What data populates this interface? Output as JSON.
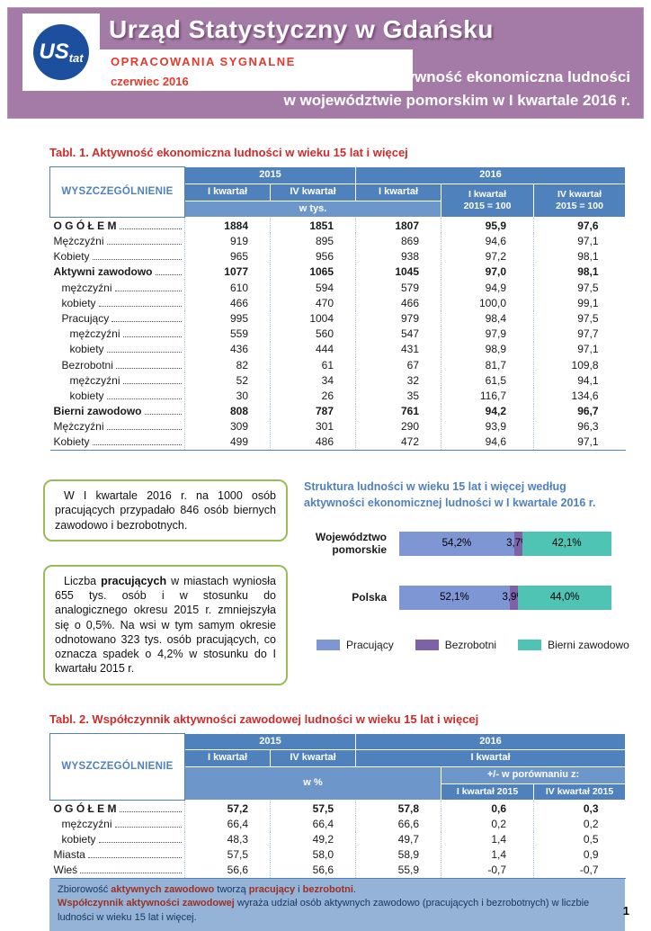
{
  "colors": {
    "banner": "#a47ba6",
    "red": "#e8382c",
    "titlered": "#cf2b2b",
    "tblue": "#4f81bd",
    "tblue-light": "#6d97cb",
    "green": "#9bbb59",
    "notebg": "#95b3d7",
    "navy": "#17365d",
    "notered": "#9e2f22",
    "logoblue": "#1d4f9f"
  },
  "header": {
    "logo_us": "US",
    "logo_tat": "tat",
    "office_title": "Urząd Statystyczny w Gdańsku",
    "series": "OPRACOWANIA SYGNALNE",
    "date": "czerwiec 2016",
    "publication_title_line1": "Aktywność ekonomiczna ludności",
    "publication_title_line2": "w województwie pomorskim w I kwartale 2016 r."
  },
  "table1": {
    "title": "Tabl. 1. Aktywność ekonomiczna ludności w wieku 15 lat i więcej",
    "header": {
      "stub": "WYSZCZEGÓLNIENIE",
      "y2015": "2015",
      "y2016": "2016",
      "q1_2015": "I kwartał",
      "q4_2015": "IV kwartał",
      "q1_2016": "I kwartał",
      "unit": "w tys.",
      "idx_q1_l1": "I kwartał",
      "idx_q1_l2": "2015 = 100",
      "idx_q4_l1": "IV kwartał",
      "idx_q4_l2": "2015 = 100"
    },
    "rows": [
      {
        "label": "O G Ó Ł E M",
        "indent": 0,
        "bold": true,
        "values": [
          "1884",
          "1851",
          "1807",
          "95,9",
          "97,6"
        ]
      },
      {
        "label": "Mężczyźni",
        "indent": 0,
        "bold": false,
        "values": [
          "919",
          "895",
          "869",
          "94,6",
          "97,1"
        ]
      },
      {
        "label": "Kobiety",
        "indent": 0,
        "bold": false,
        "values": [
          "965",
          "956",
          "938",
          "97,2",
          "98,1"
        ]
      },
      {
        "label": "Aktywni zawodowo",
        "indent": 0,
        "bold": true,
        "values": [
          "1077",
          "1065",
          "1045",
          "97,0",
          "98,1"
        ]
      },
      {
        "label": "mężczyźni",
        "indent": 1,
        "bold": false,
        "values": [
          "610",
          "594",
          "579",
          "94,9",
          "97,5"
        ]
      },
      {
        "label": "kobiety",
        "indent": 1,
        "bold": false,
        "values": [
          "466",
          "470",
          "466",
          "100,0",
          "99,1"
        ]
      },
      {
        "label": "Pracujący",
        "indent": 1,
        "bold": false,
        "values": [
          "995",
          "1004",
          "979",
          "98,4",
          "97,5"
        ]
      },
      {
        "label": "mężczyźni",
        "indent": 2,
        "bold": false,
        "values": [
          "559",
          "560",
          "547",
          "97,9",
          "97,7"
        ]
      },
      {
        "label": "kobiety",
        "indent": 2,
        "bold": false,
        "values": [
          "436",
          "444",
          "431",
          "98,9",
          "97,1"
        ]
      },
      {
        "label": "Bezrobotni",
        "indent": 1,
        "bold": false,
        "values": [
          "82",
          "61",
          "67",
          "81,7",
          "109,8"
        ]
      },
      {
        "label": "mężczyźni",
        "indent": 2,
        "bold": false,
        "values": [
          "52",
          "34",
          "32",
          "61,5",
          "94,1"
        ]
      },
      {
        "label": "kobiety",
        "indent": 2,
        "bold": false,
        "values": [
          "30",
          "26",
          "35",
          "116,7",
          "134,6"
        ]
      },
      {
        "label": "Bierni zawodowo",
        "indent": 0,
        "bold": true,
        "values": [
          "808",
          "787",
          "761",
          "94,2",
          "96,7"
        ]
      },
      {
        "label": "Mężczyźni",
        "indent": 0,
        "bold": false,
        "values": [
          "309",
          "301",
          "290",
          "93,9",
          "96,3"
        ]
      },
      {
        "label": "Kobiety",
        "indent": 0,
        "bold": false,
        "values": [
          "499",
          "486",
          "472",
          "94,6",
          "97,1"
        ]
      }
    ]
  },
  "callouts": {
    "box1": [
      {
        "t": "W I kwartale 2016 r. na 1000 osób pracujących przypadało 846 osób biernych zawodowo i bezrobotnych."
      }
    ],
    "box2": [
      {
        "t": "Liczba "
      },
      {
        "t": "pracujących",
        "cls": "b"
      },
      {
        "t": " w miastach wyniosła 655 tys. osób i w stosunku do analogicznego okresu 2015 r. zmniejszyła się o 0,5%. Na wsi w tym samym okresie odnotowano 323 tys. osób pracujących, co oznacza spadek o 4,2% w stosunku do I kwartału 2015 r."
      }
    ]
  },
  "chart_data": {
    "type": "bar",
    "orientation": "horizontal",
    "stacked": true,
    "title": "Struktura ludności w wieku 15 lat i więcej według aktywności ekonomicznej ludności w I kwartale 2016 r.",
    "categories": [
      "Województwo pomorskie",
      "Polska"
    ],
    "series": [
      {
        "name": "Pracujący",
        "key": "pracujacy",
        "color": "#7e96d4",
        "values": [
          54.2,
          52.1
        ]
      },
      {
        "name": "Bezrobotni",
        "key": "bezrobotni",
        "color": "#7d62a8",
        "values": [
          3.7,
          3.9
        ]
      },
      {
        "name": "Bierni zawodowo",
        "key": "bierni",
        "color": "#4fc3b4",
        "values": [
          42.1,
          44.0
        ]
      }
    ],
    "data_labels": [
      [
        "54,2%",
        "3,7%",
        "42,1%"
      ],
      [
        "52,1%",
        "3,9%",
        "44,0%"
      ]
    ],
    "xlim": [
      0,
      100
    ],
    "grid": false,
    "legend_position": "bottom"
  },
  "table2": {
    "title": "Tabl. 2. Współczynnik aktywności zawodowej ludności w wieku 15 lat i więcej",
    "header": {
      "stub": "WYSZCZEGÓLNIENIE",
      "y2015": "2015",
      "y2016": "2016",
      "q1_2015": "I kwartał",
      "q4_2015": "IV kwartał",
      "q1_2016": "I kwartał",
      "unit": "w %",
      "cmp": "+/- w porównaniu z:",
      "cmp1": "I kwartał 2015",
      "cmp2": "IV kwartał 2015"
    },
    "rows": [
      {
        "label": "O G Ó Ł E M",
        "indent": 0,
        "bold": true,
        "values": [
          "57,2",
          "57,5",
          "57,8",
          "0,6",
          "0,3"
        ]
      },
      {
        "label": "mężczyźni",
        "indent": 1,
        "bold": false,
        "values": [
          "66,4",
          "66,4",
          "66,6",
          "0,2",
          "0,2"
        ]
      },
      {
        "label": "kobiety",
        "indent": 1,
        "bold": false,
        "values": [
          "48,3",
          "49,2",
          "49,7",
          "1,4",
          "0,5"
        ]
      },
      {
        "label": "Miasta",
        "indent": 0,
        "bold": false,
        "values": [
          "57,5",
          "58,0",
          "58,9",
          "1,4",
          "0,9"
        ]
      },
      {
        "label": "Wieś",
        "indent": 0,
        "bold": false,
        "values": [
          "56,6",
          "56,6",
          "55,9",
          "-0,7",
          "-0,7"
        ]
      }
    ]
  },
  "note": {
    "line1": [
      {
        "t": "Zbiorowość "
      },
      {
        "t": "aktywnych zawodowo",
        "cls": "hl"
      },
      {
        "t": " tworzą "
      },
      {
        "t": "pracujący",
        "cls": "hl"
      },
      {
        "t": " i "
      },
      {
        "t": "bezrobotni",
        "cls": "hl"
      },
      {
        "t": "."
      }
    ],
    "line2": [
      {
        "t": "Współczynnik aktywności zawodowej",
        "cls": "hl"
      },
      {
        "t": " wyraża udział osób aktywnych zawodowo (pracujących i bezrobotnych) w liczbie ludności w wieku 15 lat i więcej."
      }
    ]
  },
  "page": {
    "number": "1"
  }
}
